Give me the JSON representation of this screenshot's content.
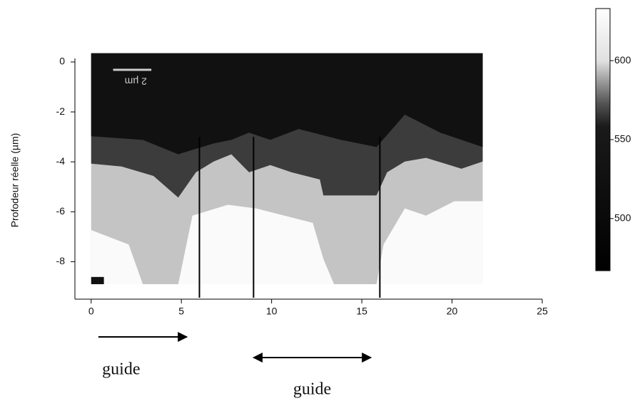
{
  "chart_data": {
    "type": "image",
    "ylabel": "Profodeur réelle (µm)",
    "xlim": [
      -0.9,
      25
    ],
    "xticks": [
      0,
      5,
      10,
      15,
      20,
      25
    ],
    "ylim": [
      -9.5,
      0
    ],
    "yticks": [
      -8,
      -6,
      -4,
      -2,
      0
    ],
    "image_extent": [
      0,
      21.7,
      -8.9,
      0.35
    ],
    "scale_label": "2 µm",
    "vlines": [
      6,
      9,
      16
    ],
    "clim": [
      467,
      633
    ],
    "cticks": [
      500,
      550,
      600
    ],
    "guides": [
      {
        "label": "guide",
        "x": [
          0.4,
          5.3
        ],
        "direction": "right"
      },
      {
        "label": "guide",
        "x": [
          9,
          15.5
        ],
        "direction": "both"
      }
    ]
  }
}
